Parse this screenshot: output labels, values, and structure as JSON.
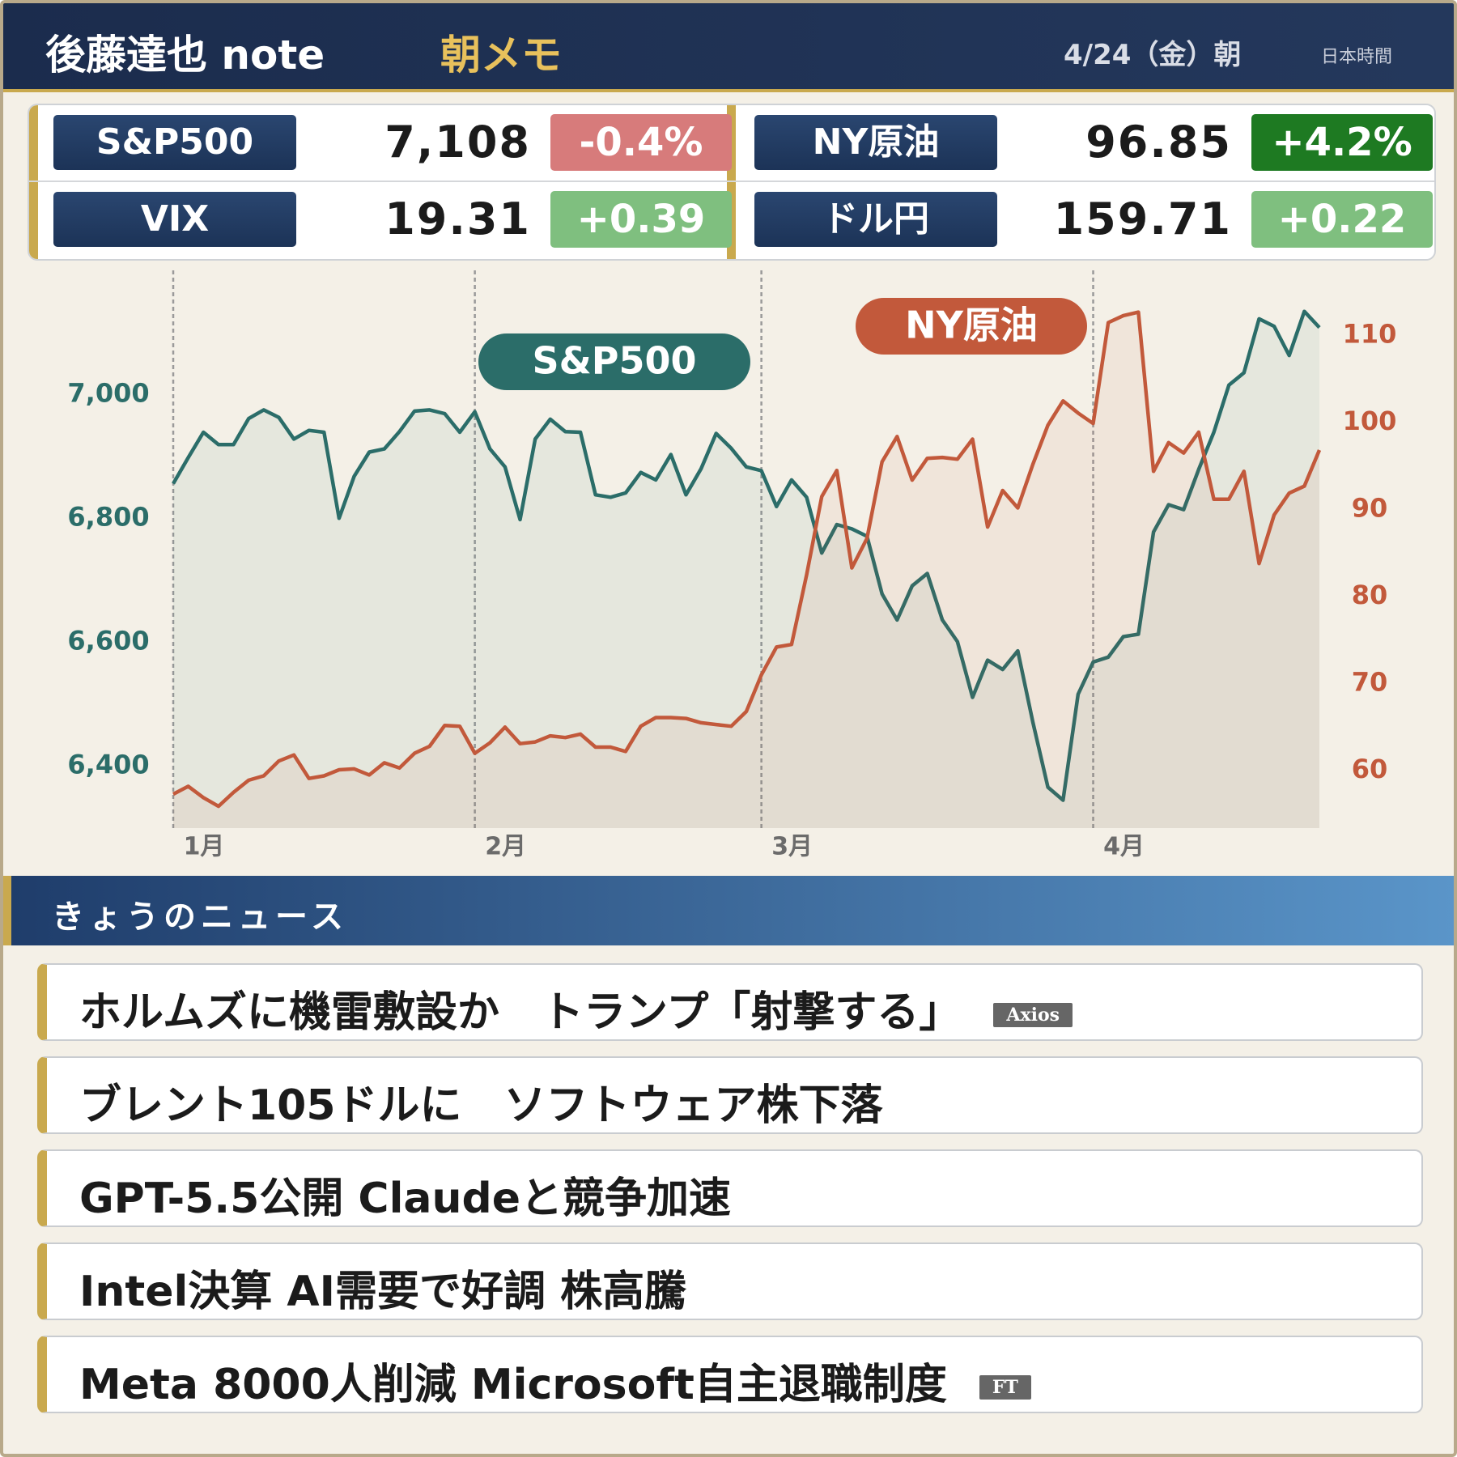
{
  "header": {
    "title": "後藤達也 note",
    "subtitle": "朝メモ",
    "date": "4/24（金）朝",
    "timezone": "日本時間"
  },
  "quotes": [
    {
      "name": "S&P500",
      "value": "7,108",
      "change": "-0.4%",
      "change_color": "#d77b7b"
    },
    {
      "name": "NY原油",
      "value": "96.85",
      "change": "+4.2%",
      "change_color": "#1e7a22"
    },
    {
      "name": "VIX",
      "value": "19.31",
      "change": "+0.39",
      "change_color": "#7fbf7f"
    },
    {
      "name": "ドル円",
      "value": "159.71",
      "change": "+0.22",
      "change_color": "#7fbf7f"
    }
  ],
  "chart_data": {
    "type": "line",
    "categories": [
      "1月",
      null,
      null,
      null,
      null,
      null,
      null,
      null,
      null,
      null,
      null,
      null,
      null,
      null,
      null,
      null,
      null,
      null,
      null,
      null,
      "2月",
      null,
      null,
      null,
      null,
      null,
      null,
      null,
      null,
      null,
      null,
      null,
      null,
      null,
      null,
      null,
      null,
      null,
      null,
      "3月",
      null,
      null,
      null,
      null,
      null,
      null,
      null,
      null,
      null,
      null,
      null,
      null,
      null,
      null,
      null,
      null,
      null,
      null,
      null,
      null,
      null,
      "4月",
      null,
      null,
      null,
      null,
      null,
      null,
      null,
      null,
      null,
      null,
      null,
      null,
      null,
      null,
      null
    ],
    "series": [
      {
        "name": "S&P500",
        "color": "#2b6d69",
        "values": [
          6856,
          6898,
          6939,
          6919,
          6919,
          6961,
          6975,
          6963,
          6928,
          6942,
          6939,
          6800,
          6868,
          6907,
          6912,
          6940,
          6973,
          6975,
          6969,
          6939,
          6972,
          6912,
          6883,
          6798,
          6928,
          6960,
          6940,
          6939,
          6838,
          6834,
          6841,
          6874,
          6862,
          6903,
          6838,
          6880,
          6937,
          6913,
          6883,
          6877,
          6819,
          6862,
          6834,
          6744,
          6790,
          6783,
          6771,
          6678,
          6636,
          6691,
          6711,
          6636,
          6601,
          6511,
          6571,
          6556,
          6586,
          6471,
          6366,
          6345,
          6516,
          6568,
          6576,
          6609,
          6613,
          6778,
          6822,
          6814,
          6879,
          6939,
          7015,
          7035,
          7122,
          7110,
          7063,
          7134,
          7108
        ]
      },
      {
        "name": "NY原油",
        "color": "#c2593b",
        "axis": "y2",
        "values": [
          57.3,
          58.2,
          56.9,
          55.9,
          57.5,
          58.9,
          59.4,
          61.1,
          61.8,
          59.1,
          59.4,
          60.1,
          60.2,
          59.5,
          60.9,
          60.3,
          62.0,
          62.8,
          65.2,
          65.1,
          62.0,
          63.2,
          65.0,
          63.1,
          63.3,
          64.0,
          63.8,
          64.2,
          62.7,
          62.7,
          62.2,
          65.1,
          66.1,
          66.1,
          66.0,
          65.5,
          65.3,
          65.1,
          66.8,
          71.0,
          74.2,
          74.5,
          82.5,
          91.5,
          94.5,
          83.3,
          86.7,
          95.5,
          98.4,
          93.4,
          95.9,
          96.0,
          95.8,
          98.1,
          88.0,
          92.2,
          90.2,
          95.2,
          99.7,
          102.5,
          101.1,
          99.9,
          111.5,
          112.3,
          112.7,
          94.4,
          97.7,
          96.5,
          98.9,
          91.2,
          91.2,
          94.4,
          83.8,
          89.4,
          91.9,
          92.7,
          96.85
        ]
      }
    ],
    "ylim": [
      6300,
      7182
    ],
    "yticks": [
      {
        "value": 6400,
        "label": "6,400"
      },
      {
        "value": 6600,
        "label": "6,600"
      },
      {
        "value": 6800,
        "label": "6,800"
      },
      {
        "value": 7000,
        "label": "7,000"
      }
    ],
    "y2lim": [
      53.4,
      116.2
    ],
    "y2ticks": [
      60,
      70,
      80,
      90,
      100,
      110
    ],
    "grid": true
  },
  "news": {
    "title": "きょうのニュース",
    "items": [
      {
        "text": "ホルムズに機雷敷設か　トランプ「射撃する」",
        "source": "Axios"
      },
      {
        "text": "ブレント105ドルに　ソフトウェア株下落"
      },
      {
        "text": "GPT-5.5公開 Claudeと競争加速"
      },
      {
        "text": "Intel決算 AI需要で好調 株高騰"
      },
      {
        "text": "Meta 8000人削減 Microsoft自主退職制度",
        "source": "FT"
      }
    ]
  }
}
